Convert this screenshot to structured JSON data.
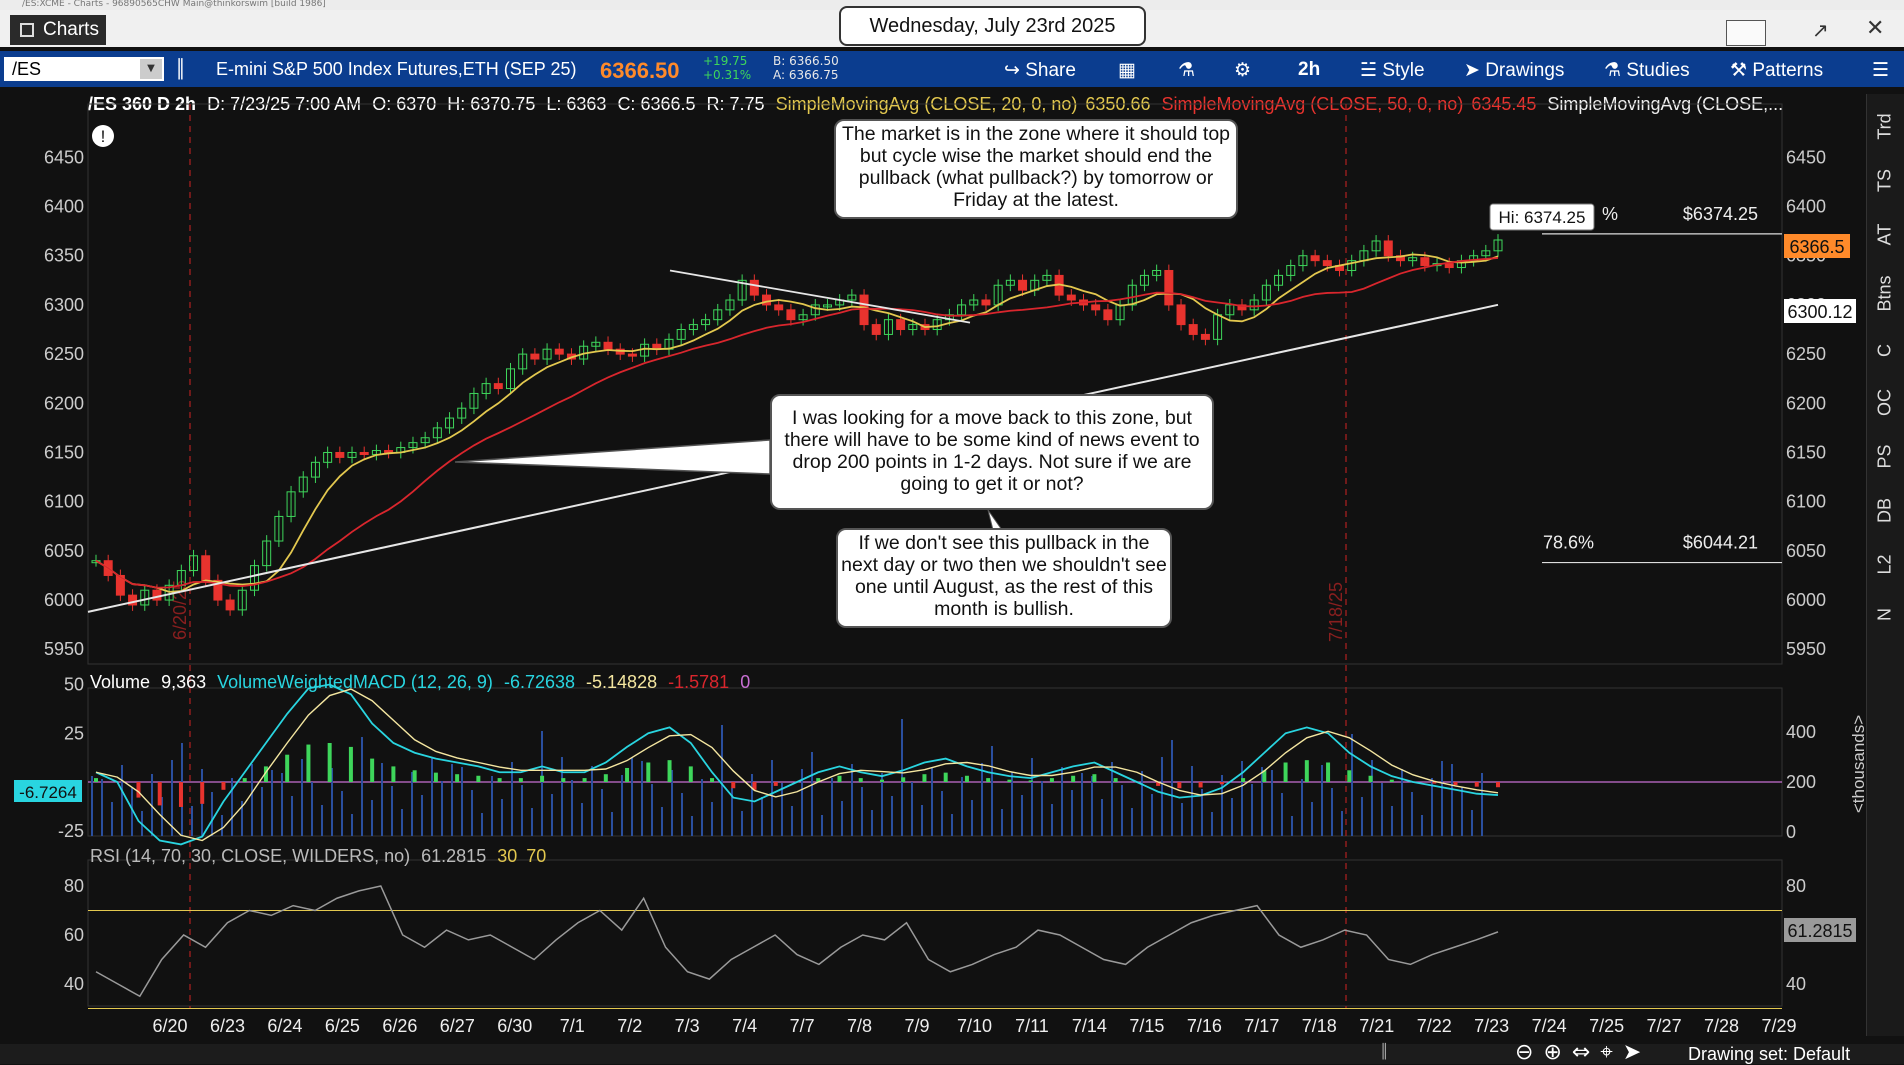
{
  "window": {
    "title_bar_text": "/ES:XCME - Charts - 96890565CHW Main@thinkorswim [build 1986]",
    "tab_label": "Charts",
    "date_label": "Wednesday, July 23rd 2025"
  },
  "symbol": {
    "ticker": "/ES",
    "description": "E-mini S&P 500 Index Futures,ETH (SEP 25)",
    "last": "6366.50",
    "net_change": "+19.75",
    "pct_change": "+0.31%",
    "bid": "B: 6366.50",
    "ask": "A: 6366.75"
  },
  "toolbar": {
    "share": "Share",
    "timeframe": "2h",
    "style": "Style",
    "drawings": "Drawings",
    "studies": "Studies",
    "patterns": "Patterns"
  },
  "header_info": {
    "chart_id": "/ES 360 D 2h",
    "date": "D: 7/23/25 7:00 AM",
    "open": "O: 6370",
    "high": "H: 6370.75",
    "low": "L: 6363",
    "close": "C: 6366.5",
    "range": "R: 7.75",
    "sma20_label": "SimpleMovingAvg (CLOSE, 20, 0, no)",
    "sma20_value": "6350.66",
    "sma50_label": "SimpleMovingAvg (CLOSE, 50, 0, no)",
    "sma50_value": "6345.45",
    "sma200_label": "SimpleMovingAvg (CLOSE,..."
  },
  "annotations": {
    "top": "The market is in the zone where it should top but cycle wise the market should end the pullback (what pullback?) by tomorrow or Friday at the latest.",
    "middle": "I was looking for a move back to this zone, but there will have to be some kind of news event to drop 200 points in 1-2 days.  Not sure if we are going to get it or not?",
    "bottom": "If we don't see this pullback in the next day or two then we shouldn't see one until August, as the rest of this month is bullish."
  },
  "price_labels": {
    "hi_bubble": "Hi: 6374.25",
    "hi_pct_fragment": "%",
    "fib_top": "$6374.25",
    "fib_78_pct": "78.6%",
    "fib_78_value": "$6044.21",
    "last_tag": "6366.5",
    "sma200_tag": "6300.12",
    "vertical_date_1": "6/20/25",
    "vertical_date_2": "7/18/25"
  },
  "panes": {
    "volume_title": "Volume",
    "volume_value": "9,363",
    "macd_label": "VolumeWeightedMACD (12, 26, 9)",
    "macd_value": "-6.72638",
    "macd_avg": "-5.14828",
    "macd_diff": "-1.5781",
    "macd_zero": "0",
    "macd_tag": "-6.7264",
    "volume_unit": "<thousands>",
    "rsi_label": "RSI (14, 70, 30, CLOSE, WILDERS, no)",
    "rsi_value": "61.2815",
    "rsi_os": "30",
    "rsi_ob": "70",
    "rsi_tag": "61.2815"
  },
  "axes": {
    "price_ticks": [
      "6450",
      "6400",
      "6350",
      "6300",
      "6250",
      "6200",
      "6150",
      "6100",
      "6050",
      "6000",
      "5950"
    ],
    "macd_ticks": [
      "50",
      "25",
      "-25"
    ],
    "volume_ticks": [
      "400",
      "200",
      "0"
    ],
    "rsi_ticks": [
      "80",
      "60",
      "40"
    ],
    "date_ticks": [
      "6/20",
      "6/23",
      "6/24",
      "6/25",
      "6/26",
      "6/27",
      "6/30",
      "7/1",
      "7/2",
      "7/3",
      "7/4",
      "7/7",
      "7/8",
      "7/9",
      "7/10",
      "7/11",
      "7/14",
      "7/15",
      "7/16",
      "7/17",
      "7/18",
      "7/21",
      "7/22",
      "7/23",
      "7/24",
      "7/25",
      "7/27",
      "7/28",
      "7/29"
    ]
  },
  "sidebar_tabs": [
    "Trd",
    "TS",
    "AT",
    "Btns",
    "C",
    "OC",
    "PS",
    "DB",
    "L2",
    "N"
  ],
  "status": {
    "drawing_set": "Drawing set: Default"
  },
  "chart_data": {
    "type": "candlestick",
    "title": "/ES 360 D 2h",
    "price_ylim": [
      5935,
      6490
    ],
    "closes": [
      6040,
      6025,
      6005,
      5995,
      6010,
      6000,
      6015,
      6030,
      6045,
      6020,
      6000,
      5990,
      6010,
      6035,
      6060,
      6085,
      6110,
      6125,
      6140,
      6150,
      6145,
      6150,
      6148,
      6152,
      6150,
      6155,
      6160,
      6165,
      6175,
      6185,
      6195,
      6210,
      6220,
      6215,
      6235,
      6250,
      6245,
      6255,
      6250,
      6245,
      6258,
      6262,
      6255,
      6250,
      6248,
      6260,
      6255,
      6265,
      6275,
      6280,
      6285,
      6295,
      6305,
      6325,
      6310,
      6300,
      6295,
      6285,
      6290,
      6300,
      6300,
      6305,
      6310,
      6280,
      6270,
      6285,
      6275,
      6280,
      6275,
      6285,
      6290,
      6300,
      6305,
      6300,
      6320,
      6325,
      6315,
      6325,
      6330,
      6310,
      6305,
      6300,
      6295,
      6285,
      6300,
      6320,
      6330,
      6335,
      6300,
      6280,
      6270,
      6265,
      6290,
      6300,
      6295,
      6305,
      6320,
      6330,
      6340,
      6350,
      6345,
      6340,
      6335,
      6345,
      6355,
      6365,
      6350,
      6345,
      6348,
      6340,
      6342,
      6338,
      6345,
      6350,
      6355,
      6366
    ],
    "sma20_end": 6350.66,
    "sma50_end": 6345.45,
    "sma200_end": 6300.12,
    "fib_levels": [
      {
        "label": "78.6%",
        "value": 6044.21
      },
      {
        "label": "",
        "value": 6374.25
      }
    ],
    "macd": [
      5,
      0,
      -20,
      -30,
      -32,
      -28,
      -10,
      5,
      20,
      35,
      48,
      50,
      45,
      30,
      20,
      15,
      12,
      10,
      8,
      5,
      5,
      8,
      5,
      5,
      10,
      18,
      25,
      28,
      20,
      5,
      -8,
      -10,
      -5,
      0,
      5,
      8,
      5,
      3,
      6,
      10,
      12,
      8,
      5,
      3,
      2,
      5,
      8,
      10,
      5,
      0,
      -5,
      -8,
      -7,
      -3,
      5,
      15,
      25,
      28,
      25,
      15,
      8,
      3,
      0,
      -2,
      -4,
      -6,
      -6.7
    ],
    "rsi": [
      45,
      40,
      35,
      50,
      60,
      55,
      65,
      70,
      68,
      72,
      70,
      75,
      78,
      80,
      60,
      55,
      62,
      58,
      60,
      55,
      50,
      58,
      65,
      70,
      62,
      75,
      55,
      45,
      42,
      50,
      55,
      60,
      52,
      48,
      55,
      60,
      58,
      65,
      50,
      45,
      48,
      52,
      55,
      62,
      60,
      55,
      50,
      48,
      55,
      60,
      65,
      68,
      70,
      72,
      60,
      55,
      58,
      62,
      60,
      50,
      48,
      52,
      55,
      58,
      61.28
    ],
    "dates": [
      "6/20",
      "6/23",
      "6/24",
      "6/25",
      "6/26",
      "6/27",
      "6/30",
      "7/1",
      "7/2",
      "7/3",
      "7/4",
      "7/7",
      "7/8",
      "7/9",
      "7/10",
      "7/11",
      "7/14",
      "7/15",
      "7/16",
      "7/17",
      "7/18",
      "7/21",
      "7/22",
      "7/23",
      "7/24",
      "7/25",
      "7/27",
      "7/28",
      "7/29"
    ]
  },
  "colors": {
    "background": "#111111",
    "toolbar": "#0b3d8f",
    "up": "#3ed65b",
    "down": "#e8332e",
    "sma20": "#e3c84f",
    "sma50": "#d9262d",
    "sma200": "#e6e6e6",
    "macd": "#29d5e0",
    "rsi": "#9a9a9a"
  }
}
